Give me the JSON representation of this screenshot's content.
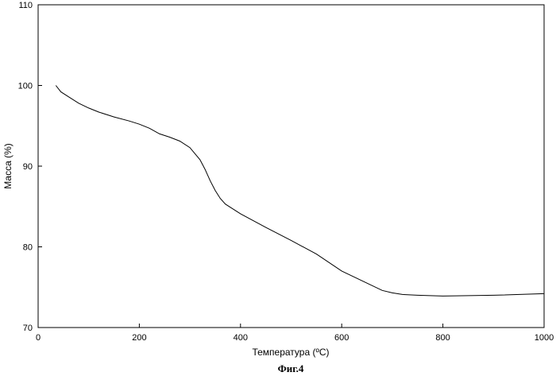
{
  "chart_data": {
    "type": "line",
    "title": "",
    "xlabel": "Температура (ºC)",
    "ylabel": "Масса (%)",
    "caption": "Фиг.4",
    "xlim": [
      0,
      1000
    ],
    "ylim": [
      70,
      110
    ],
    "x_ticks": [
      0,
      200,
      400,
      600,
      800,
      1000
    ],
    "y_ticks": [
      70,
      80,
      90,
      100,
      110
    ],
    "grid": false,
    "series": [
      {
        "color": "#000000",
        "x": [
          35,
          45,
          60,
          80,
          100,
          120,
          150,
          180,
          200,
          220,
          240,
          260,
          280,
          300,
          320,
          330,
          340,
          350,
          360,
          370,
          380,
          400,
          450,
          500,
          550,
          600,
          650,
          680,
          700,
          720,
          750,
          800,
          900,
          1000
        ],
        "y": [
          100.0,
          99.2,
          98.6,
          97.8,
          97.2,
          96.7,
          96.1,
          95.6,
          95.2,
          94.7,
          94.0,
          93.6,
          93.1,
          92.3,
          90.8,
          89.6,
          88.2,
          87.0,
          86.0,
          85.3,
          84.9,
          84.1,
          82.4,
          80.8,
          79.1,
          77.0,
          75.5,
          74.6,
          74.3,
          74.1,
          74.0,
          73.9,
          74.0,
          74.2
        ]
      }
    ]
  }
}
